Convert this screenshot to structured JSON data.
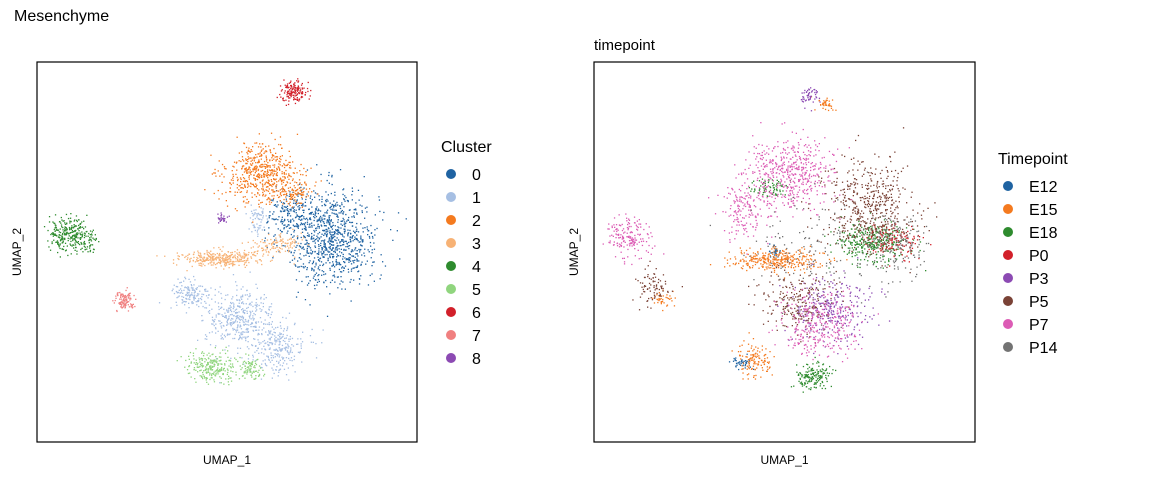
{
  "figure": {
    "title": "Mesenchyme"
  },
  "chart_data": [
    {
      "type": "scatter",
      "title": "",
      "xlabel": "UMAP_1",
      "ylabel": "UMAP_2",
      "grid": false,
      "ticks": false,
      "legend_title": "Cluster",
      "legend_placement": "right",
      "xlim": [
        -10,
        10
      ],
      "ylim": [
        -10,
        10
      ],
      "series": [
        {
          "name": "0",
          "color": "#1f63a2",
          "blobs": [
            [
              5.5,
              0.8,
              2.2,
              2.3,
              900
            ],
            [
              3.4,
              2.0,
              1.2,
              1.1,
              180
            ]
          ]
        },
        {
          "name": "1",
          "color": "#a6bfe3",
          "blobs": [
            [
              0.6,
              -3.4,
              1.6,
              1.3,
              380
            ],
            [
              2.6,
              -5.0,
              1.4,
              1.2,
              260
            ],
            [
              -2.0,
              -2.2,
              0.9,
              0.8,
              140
            ],
            [
              1.6,
              1.7,
              0.5,
              0.9,
              60
            ]
          ]
        },
        {
          "name": "2",
          "color": "#f47a1f",
          "blobs": [
            [
              1.8,
              4.1,
              1.8,
              1.4,
              560
            ],
            [
              3.6,
              3.2,
              0.8,
              0.6,
              90
            ]
          ]
        },
        {
          "name": "3",
          "color": "#f7b275",
          "blobs": [
            [
              -0.4,
              -0.3,
              1.9,
              0.4,
              340
            ],
            [
              2.6,
              0.4,
              1.2,
              0.5,
              110
            ]
          ]
        },
        {
          "name": "4",
          "color": "#2e8b2e",
          "blobs": [
            [
              -8.4,
              1.0,
              0.9,
              0.8,
              260
            ],
            [
              -7.3,
              0.5,
              0.5,
              0.5,
              50
            ]
          ]
        },
        {
          "name": "5",
          "color": "#90d57e",
          "blobs": [
            [
              -0.8,
              -6.0,
              1.2,
              0.7,
              240
            ],
            [
              1.2,
              -6.1,
              0.6,
              0.5,
              90
            ]
          ]
        },
        {
          "name": "6",
          "color": "#d2202a",
          "blobs": [
            [
              3.5,
              8.5,
              0.6,
              0.5,
              150
            ]
          ]
        },
        {
          "name": "7",
          "color": "#f08080",
          "blobs": [
            [
              -5.4,
              -2.5,
              0.5,
              0.4,
              110
            ]
          ]
        },
        {
          "name": "8",
          "color": "#8c4ab3",
          "blobs": [
            [
              -0.3,
              1.8,
              0.3,
              0.2,
              30
            ]
          ]
        }
      ]
    },
    {
      "type": "scatter",
      "title": "timepoint",
      "xlabel": "UMAP_1",
      "ylabel": "UMAP_2",
      "grid": false,
      "ticks": false,
      "legend_title": "Timepoint",
      "legend_placement": "right",
      "xlim": [
        -10,
        10
      ],
      "ylim": [
        -10,
        10
      ],
      "series": [
        {
          "name": "E12",
          "color": "#1f63a2",
          "blobs": [
            [
              -0.6,
              0.0,
              0.3,
              0.3,
              30
            ],
            [
              -2.3,
              -5.8,
              0.5,
              0.3,
              40
            ]
          ]
        },
        {
          "name": "E15",
          "color": "#f47a1f",
          "blobs": [
            [
              -0.5,
              -0.4,
              2.2,
              0.5,
              330
            ],
            [
              -1.6,
              -5.6,
              0.8,
              0.8,
              120
            ],
            [
              2.2,
              7.8,
              0.5,
              0.3,
              40
            ],
            [
              -6.4,
              -2.4,
              0.5,
              0.4,
              40
            ]
          ]
        },
        {
          "name": "E18",
          "color": "#2e8b2e",
          "blobs": [
            [
              4.6,
              0.5,
              1.6,
              1.0,
              340
            ],
            [
              1.5,
              -6.5,
              0.8,
              0.6,
              160
            ],
            [
              -0.8,
              3.4,
              1.0,
              0.5,
              70
            ]
          ]
        },
        {
          "name": "P0",
          "color": "#d2202a",
          "blobs": [
            [
              5.7,
              0.6,
              1.2,
              0.8,
              130
            ]
          ]
        },
        {
          "name": "P3",
          "color": "#8c4ab3",
          "blobs": [
            [
              2.4,
              -3.0,
              2.0,
              1.6,
              300
            ],
            [
              1.2,
              8.2,
              0.5,
              0.5,
              50
            ]
          ]
        },
        {
          "name": "P5",
          "color": "#7a4236",
          "blobs": [
            [
              4.4,
              2.3,
              2.2,
              2.2,
              520
            ],
            [
              0.6,
              -2.6,
              1.8,
              1.5,
              230
            ],
            [
              -7.0,
              -1.8,
              0.8,
              0.8,
              80
            ]
          ]
        },
        {
          "name": "P7",
          "color": "#dc5cb5",
          "blobs": [
            [
              0.2,
              4.2,
              2.2,
              1.6,
              500
            ],
            [
              1.8,
              -3.8,
              1.8,
              1.5,
              300
            ],
            [
              -8.2,
              0.8,
              1.0,
              0.9,
              170
            ],
            [
              -2.2,
              2.2,
              1.2,
              1.4,
              150
            ]
          ]
        },
        {
          "name": "P14",
          "color": "#737373",
          "blobs": [
            [
              5.8,
              0.2,
              1.8,
              1.6,
              160
            ],
            [
              1.0,
              0.0,
              3.0,
              3.0,
              130
            ]
          ]
        }
      ]
    }
  ]
}
